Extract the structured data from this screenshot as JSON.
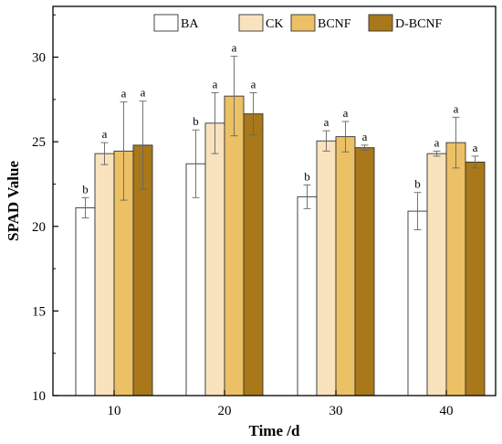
{
  "chart_data": {
    "type": "bar",
    "xlabel": "Time /d",
    "ylabel": "SPAD Value",
    "ylim": [
      10,
      33
    ],
    "yticks": [
      10,
      15,
      20,
      25,
      30
    ],
    "categories": [
      "10",
      "20",
      "30",
      "40"
    ],
    "legend_position": "top-right",
    "series": [
      {
        "name": "BA",
        "color": "#ffffff",
        "values": [
          21.1,
          23.7,
          21.75,
          20.9
        ],
        "errors": [
          0.6,
          2.0,
          0.7,
          1.1
        ],
        "labels": [
          "b",
          "b",
          "b",
          "b"
        ]
      },
      {
        "name": "CK",
        "color": "#f8e3be",
        "values": [
          24.3,
          26.1,
          25.05,
          24.3
        ],
        "errors": [
          0.65,
          1.8,
          0.6,
          0.15
        ],
        "labels": [
          "a",
          "a",
          "a",
          "a"
        ]
      },
      {
        "name": "BCNF",
        "color": "#ecc064",
        "values": [
          24.45,
          27.7,
          25.3,
          24.95
        ],
        "errors": [
          2.9,
          2.35,
          0.9,
          1.5
        ],
        "labels": [
          "a",
          "a",
          "a",
          "a"
        ]
      },
      {
        "name": "D-BCNF",
        "color": "#a8781a",
        "values": [
          24.8,
          26.65,
          24.65,
          23.8
        ],
        "errors": [
          2.6,
          1.25,
          0.15,
          0.35
        ],
        "labels": [
          "a",
          "a",
          "a",
          "a"
        ]
      }
    ]
  }
}
